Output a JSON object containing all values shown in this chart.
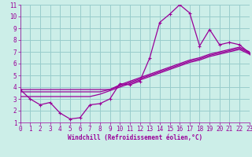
{
  "xlabel": "Windchill (Refroidissement éolien,°C)",
  "bg_color": "#cceee8",
  "grid_color": "#99cccc",
  "line_color": "#990099",
  "x_hours": [
    0,
    1,
    2,
    3,
    4,
    5,
    6,
    7,
    8,
    9,
    10,
    11,
    12,
    13,
    14,
    15,
    16,
    17,
    18,
    19,
    20,
    21,
    22,
    23
  ],
  "windchill": [
    3.8,
    3.0,
    2.5,
    2.7,
    1.8,
    1.3,
    1.4,
    2.5,
    2.6,
    3.0,
    4.3,
    4.2,
    4.5,
    6.5,
    9.5,
    10.2,
    11.0,
    10.3,
    7.5,
    8.9,
    7.6,
    7.8,
    7.6,
    6.9
  ],
  "line1": [
    3.8,
    3.8,
    3.8,
    3.8,
    3.8,
    3.8,
    3.8,
    3.8,
    3.8,
    3.8,
    4.2,
    4.5,
    4.8,
    5.1,
    5.4,
    5.7,
    6.0,
    6.3,
    6.5,
    6.8,
    7.0,
    7.2,
    7.4,
    7.0
  ],
  "line2": [
    3.6,
    3.6,
    3.6,
    3.6,
    3.6,
    3.6,
    3.6,
    3.6,
    3.6,
    3.8,
    4.1,
    4.4,
    4.7,
    5.0,
    5.3,
    5.6,
    5.9,
    6.2,
    6.4,
    6.7,
    6.9,
    7.1,
    7.3,
    6.9
  ],
  "line3": [
    3.2,
    3.2,
    3.2,
    3.2,
    3.2,
    3.2,
    3.2,
    3.2,
    3.4,
    3.7,
    4.0,
    4.3,
    4.6,
    4.9,
    5.2,
    5.5,
    5.8,
    6.1,
    6.3,
    6.6,
    6.8,
    7.0,
    7.2,
    6.8
  ],
  "xlim": [
    0,
    23
  ],
  "ylim": [
    1,
    11
  ],
  "yticks": [
    1,
    2,
    3,
    4,
    5,
    6,
    7,
    8,
    9,
    10,
    11
  ],
  "xticks": [
    0,
    1,
    2,
    3,
    4,
    5,
    6,
    7,
    8,
    9,
    10,
    11,
    12,
    13,
    14,
    15,
    16,
    17,
    18,
    19,
    20,
    21,
    22,
    23
  ]
}
